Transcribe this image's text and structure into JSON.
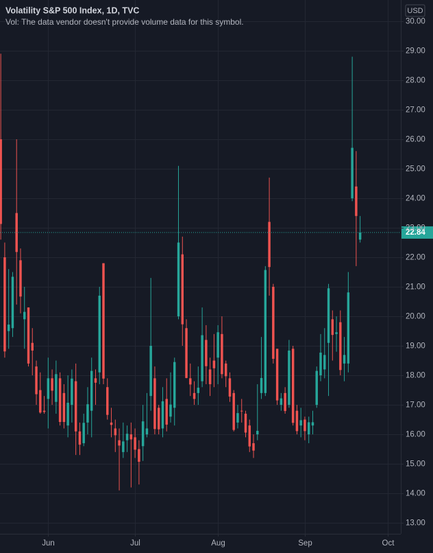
{
  "chart_data": {
    "type": "candlestick",
    "title": "Volatility S&P 500 Index, 1D, TVC",
    "subtitle": "Vol: The data vendor doesn't provide volume data for this symbol.",
    "currency": "USD",
    "up_color": "#26a69a",
    "down_color": "#ef5350",
    "grid": true,
    "x": [
      0,
      1,
      2,
      3,
      4,
      5,
      6,
      7,
      8,
      9,
      10,
      11,
      12,
      13,
      14,
      15,
      16,
      17,
      18,
      19,
      20,
      21,
      22,
      23,
      24,
      25,
      26,
      27,
      28,
      29,
      30,
      31,
      32,
      33,
      34,
      35,
      36,
      37,
      38,
      39,
      40,
      41,
      42,
      43,
      44,
      45,
      46,
      47,
      48,
      49,
      50,
      51,
      52,
      53,
      54,
      55,
      56,
      57,
      58,
      59,
      60,
      61,
      62,
      63,
      64,
      65,
      66,
      67,
      68,
      69,
      70,
      71,
      72,
      73,
      74,
      75,
      76,
      77,
      78,
      79,
      80,
      81,
      82,
      83,
      84,
      85,
      86,
      87,
      88,
      89,
      90,
      91
    ],
    "open": [
      26.0,
      22.0,
      19.5,
      19.6,
      23.5,
      21.9,
      19.9,
      20.3,
      19.1,
      18.3,
      17.5,
      16.8,
      17.2,
      17.9,
      17.1,
      17.9,
      17.4,
      16.3,
      17.0,
      17.8,
      16.1,
      15.7,
      16.4,
      16.8,
      17.9,
      18.1,
      21.8,
      17.6,
      16.4,
      16.2,
      15.8,
      15.4,
      15.8,
      16.0,
      15.9,
      15.5,
      15.6,
      16.0,
      17.3,
      17.9,
      16.9,
      16.2,
      17.2,
      16.6,
      16.9,
      20.0,
      22.1,
      19.6,
      17.9,
      17.4,
      17.4,
      17.8,
      19.2,
      18.2,
      18.5,
      18.6,
      19.4,
      18.4,
      17.9,
      17.4,
      16.4,
      16.8,
      16.7,
      16.3,
      15.7,
      16.0,
      17.4,
      17.4,
      23.2,
      21.0,
      18.9,
      17.0,
      17.4,
      17.0,
      18.9,
      16.8,
      16.3,
      16.5,
      16.0,
      16.3,
      17.0,
      18.0,
      18.2,
      19.1,
      19.9,
      19.4,
      19.8,
      18.4,
      18.4,
      24.0,
      24.4,
      22.6
    ],
    "high": [
      28.9,
      22.5,
      21.6,
      21.5,
      26.0,
      22.3,
      21.0,
      20.3,
      19.6,
      18.5,
      18.1,
      17.3,
      18.6,
      18.2,
      18.5,
      18.1,
      17.7,
      18.0,
      18.2,
      18.4,
      16.4,
      16.7,
      17.6,
      18.6,
      18.2,
      21.0,
      21.8,
      17.9,
      16.9,
      16.5,
      16.2,
      16.4,
      16.3,
      16.4,
      16.2,
      15.8,
      17.0,
      17.4,
      21.3,
      18.3,
      17.0,
      17.6,
      17.9,
      18.1,
      18.6,
      25.1,
      22.7,
      19.9,
      18.4,
      17.8,
      18.3,
      20.3,
      19.7,
      18.6,
      19.4,
      19.7,
      20.0,
      18.5,
      18.1,
      17.5,
      17.0,
      17.2,
      16.8,
      16.5,
      16.0,
      17.7,
      19.3,
      21.7,
      24.7,
      21.1,
      18.9,
      17.4,
      17.6,
      19.2,
      19.0,
      17.0,
      16.9,
      16.6,
      16.6,
      16.8,
      18.3,
      19.4,
      19.6,
      21.1,
      20.2,
      20.0,
      20.2,
      19.3,
      21.5,
      28.8,
      25.6,
      23.4
    ],
    "low": [
      22.6,
      18.6,
      18.9,
      19.3,
      20.4,
      20.1,
      18.9,
      18.3,
      18.0,
      17.0,
      16.7,
      16.7,
      16.2,
      17.0,
      16.7,
      16.3,
      16.2,
      15.9,
      16.4,
      15.3,
      15.3,
      15.6,
      16.0,
      15.9,
      17.0,
      17.7,
      17.7,
      16.5,
      15.9,
      15.4,
      14.1,
      15.2,
      15.4,
      14.2,
      15.2,
      14.3,
      15.1,
      15.9,
      16.8,
      16.0,
      16.0,
      15.9,
      16.1,
      16.4,
      16.3,
      19.9,
      19.0,
      17.9,
      17.3,
      17.0,
      17.0,
      17.6,
      17.7,
      17.3,
      17.6,
      17.7,
      17.9,
      17.6,
      17.1,
      16.1,
      16.2,
      16.4,
      15.9,
      15.4,
      15.2,
      15.8,
      17.2,
      17.3,
      20.7,
      18.4,
      17.0,
      16.8,
      16.7,
      16.9,
      16.3,
      16.0,
      15.9,
      15.8,
      15.7,
      16.0,
      16.9,
      17.8,
      17.9,
      17.3,
      18.5,
      18.8,
      18.0,
      17.8,
      18.1,
      23.9,
      21.7,
      22.5
    ],
    "close": [
      23.13,
      18.81,
      19.72,
      21.34,
      22.18,
      20.67,
      20.15,
      18.4,
      18.84,
      17.36,
      16.74,
      16.76,
      17.9,
      17.48,
      18.04,
      16.42,
      16.42,
      17.07,
      17.89,
      16.1,
      15.65,
      16.39,
      17.02,
      18.15,
      17.75,
      20.7,
      17.89,
      16.66,
      16.32,
      15.97,
      15.62,
      15.76,
      16.02,
      15.83,
      15.48,
      15.07,
      16.44,
      16.2,
      19.0,
      16.18,
      16.17,
      17.12,
      16.33,
      17.01,
      18.45,
      22.5,
      19.73,
      17.91,
      17.69,
      17.2,
      17.58,
      19.36,
      18.31,
      17.7,
      18.24,
      19.46,
      18.04,
      17.97,
      17.28,
      16.15,
      16.72,
      16.79,
      16.06,
      15.59,
      15.45,
      16.12,
      17.91,
      21.57,
      21.67,
      18.56,
      17.15,
      17.22,
      16.79,
      18.84,
      16.39,
      16.11,
      16.48,
      16.11,
      16.41,
      16.41,
      18.15,
      18.77,
      18.69,
      20.95,
      19.37,
      19.46,
      18.18,
      18.69,
      20.81,
      25.71,
      23.4,
      22.84
    ],
    "last_value": {
      "value": 22.84,
      "label": "22.84"
    },
    "xlim": [
      -0.2,
      101.3
    ],
    "ylim": [
      12.63,
      30.72
    ],
    "xticks": [
      {
        "value": 12,
        "label": "Jun"
      },
      {
        "value": 34,
        "label": "Jul"
      },
      {
        "value": 55,
        "label": "Aug"
      },
      {
        "value": 77,
        "label": "Sep"
      },
      {
        "value": 98,
        "label": "Oct"
      }
    ],
    "yticks": [
      {
        "value": 13,
        "label": "13.00"
      },
      {
        "value": 14,
        "label": "14.00"
      },
      {
        "value": 15,
        "label": "15.00"
      },
      {
        "value": 16,
        "label": "16.00"
      },
      {
        "value": 17,
        "label": "17.00"
      },
      {
        "value": 18,
        "label": "18.00"
      },
      {
        "value": 19,
        "label": "19.00"
      },
      {
        "value": 20,
        "label": "20.00"
      },
      {
        "value": 21,
        "label": "21.00"
      },
      {
        "value": 22,
        "label": "22.00"
      },
      {
        "value": 23,
        "label": "23.00"
      },
      {
        "value": 24,
        "label": "24.00"
      },
      {
        "value": 25,
        "label": "25.00"
      },
      {
        "value": 26,
        "label": "26.00"
      },
      {
        "value": 27,
        "label": "27.00"
      },
      {
        "value": 28,
        "label": "28.00"
      },
      {
        "value": 29,
        "label": "29.00"
      },
      {
        "value": 30,
        "label": "30.00"
      }
    ]
  }
}
